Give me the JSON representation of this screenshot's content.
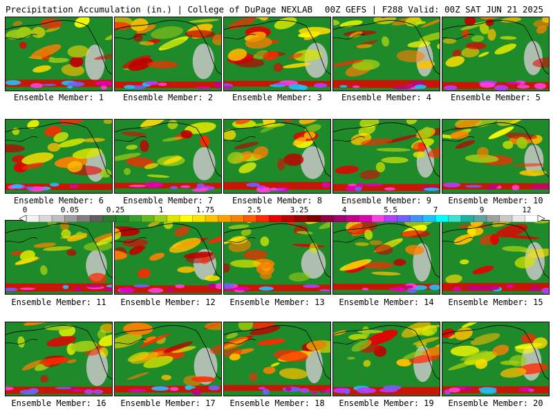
{
  "header": {
    "title": "Precipitation Accumulation (in.) | College of DuPage NEXLAB",
    "run_info": "00Z GEFS | F288 Valid: 00Z SAT JUN 21 2025"
  },
  "panels": [
    {
      "label": "Ensemble Member: 1"
    },
    {
      "label": "Ensemble Member: 2"
    },
    {
      "label": "Ensemble Member: 3"
    },
    {
      "label": "Ensemble Member: 4"
    },
    {
      "label": "Ensemble Member: 5"
    },
    {
      "label": "Ensemble Member: 6"
    },
    {
      "label": "Ensemble Member: 7"
    },
    {
      "label": "Ensemble Member: 8"
    },
    {
      "label": "Ensemble Member: 9"
    },
    {
      "label": "Ensemble Member: 10"
    },
    {
      "label": "Ensemble Member: 11"
    },
    {
      "label": "Ensemble Member: 12"
    },
    {
      "label": "Ensemble Member: 13"
    },
    {
      "label": "Ensemble Member: 14"
    },
    {
      "label": "Ensemble Member: 15"
    },
    {
      "label": "Ensemble Member: 16"
    },
    {
      "label": "Ensemble Member: 17"
    },
    {
      "label": "Ensemble Member: 18"
    },
    {
      "label": "Ensemble Member: 19"
    },
    {
      "label": "Ensemble Member: 20"
    }
  ],
  "colorbar": {
    "labels": [
      "0",
      "0.05",
      "0.25",
      "1",
      "1.75",
      "2.5",
      "3.25",
      "4",
      "5.5",
      "7",
      "9",
      "12"
    ],
    "colors": [
      "#f2f2f2",
      "#d8d8d8",
      "#bdbdbd",
      "#9c9c9c",
      "#7e7e7e",
      "#5f5f5f",
      "#2f7a2f",
      "#1f8a2a",
      "#33a02c",
      "#66b81f",
      "#9ccd16",
      "#d8e600",
      "#ffff00",
      "#ffe000",
      "#ffc000",
      "#ffa000",
      "#ff8000",
      "#ff5a00",
      "#ff2a00",
      "#e60000",
      "#c00000",
      "#a00000",
      "#800000",
      "#8a0040",
      "#a0006a",
      "#c0008a",
      "#e000b0",
      "#ff40e0",
      "#b040ff",
      "#7060ff",
      "#4090ff",
      "#20c0ff",
      "#00ffff",
      "#40e0d0",
      "#20b0a0",
      "#60a0a0",
      "#a0a0a0",
      "#c8c8c8",
      "#e8e8e8",
      "#ffffff"
    ]
  },
  "palette": {
    "ocean_base": "#1f8a2a",
    "dry_land": "#c8c8c8"
  }
}
